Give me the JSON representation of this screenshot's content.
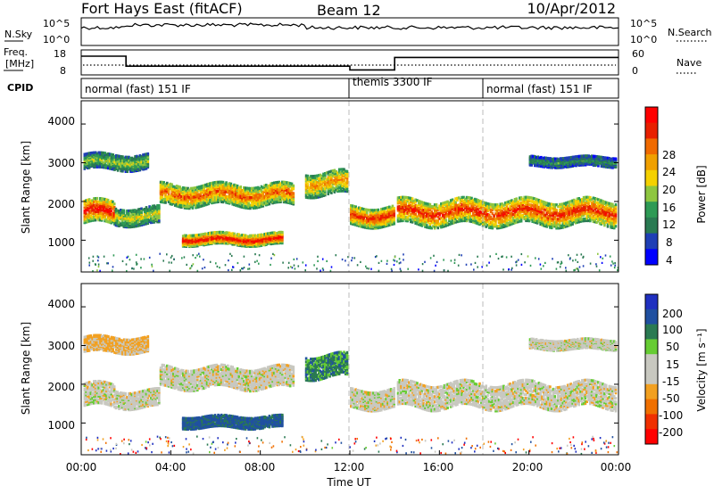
{
  "header": {
    "title": "Fort Hays East (fitACF)",
    "beam": "Beam 12",
    "date": "10/Apr/2012"
  },
  "summary": {
    "nsky_label": "N.Sky",
    "nsearch_label": "N.Search",
    "freq_label_line1": "Freq.",
    "freq_label_line2": "[MHz]",
    "nave_label": "Nave",
    "cpid_label": "CPID",
    "noise_ticks": [
      "10^5",
      "10^0"
    ],
    "freq_ticks": [
      "18",
      "8"
    ],
    "nave_ticks": [
      "60",
      "0"
    ],
    "cpid_segments": [
      {
        "label": "normal (fast) 151 IF",
        "start_hour": 0
      },
      {
        "label": "themis 3300 IF",
        "start_hour": 12
      },
      {
        "label": "normal (fast) 151 IF",
        "start_hour": 18
      }
    ],
    "freq_steps": [
      {
        "from": 0,
        "to": 2,
        "level": 0.75
      },
      {
        "from": 2,
        "to": 12,
        "level": 0.35
      },
      {
        "from": 12,
        "to": 14,
        "level": 0.2
      },
      {
        "from": 14,
        "to": 24,
        "level": 0.7
      }
    ]
  },
  "power_panel": {
    "ylabel": "Slant Range [km]",
    "yticks": [
      "4000",
      "3000",
      "2000",
      "1000"
    ],
    "colorbar_label": "Power [dB]",
    "colorbar_ticks": [
      "28",
      "24",
      "20",
      "16",
      "12",
      "8",
      "4"
    ],
    "colors": [
      "#0000ff",
      "#1f3fb5",
      "#2a7a52",
      "#2e9a55",
      "#8ec640",
      "#f5d100",
      "#f0a000",
      "#f06a00",
      "#e82000",
      "#ff0000"
    ]
  },
  "velocity_panel": {
    "ylabel": "Slant Range [km]",
    "yticks": [
      "4000",
      "3000",
      "2000",
      "1000"
    ],
    "colorbar_label": "Velocity [m s⁻¹]",
    "colorbar_ticks": [
      "200",
      "100",
      "50",
      "15",
      "-15",
      "-50",
      "-100",
      "-200"
    ],
    "colors": [
      "#2030c0",
      "#2050a0",
      "#2a7a52",
      "#66cc33",
      "#c8c8c0",
      "#c8c8c0",
      "#f2a020",
      "#f07000",
      "#f03000",
      "#ff0000"
    ]
  },
  "xaxis": {
    "label": "Time UT",
    "ticks": [
      "00:00",
      "04:00",
      "08:00",
      "12:00",
      "16:00",
      "20:00",
      "00:00"
    ]
  },
  "chart_data": {
    "type": "heatmap",
    "title": "Fort Hays East (fitACF)",
    "subtitle": "Beam 12",
    "date": "10/Apr/2012",
    "xlabel": "Time UT",
    "ylabel": "Slant Range [km]",
    "xlim_hours": [
      0,
      24
    ],
    "ylim_km": [
      180,
      4600
    ],
    "x_ticks_hours": [
      0,
      4,
      8,
      12,
      16,
      20,
      24
    ],
    "y_ticks_km": [
      1000,
      2000,
      3000,
      4000
    ],
    "mode_change_hours": [
      12,
      18
    ],
    "power_scale_db": [
      0,
      30
    ],
    "velocity_scale_ms": [
      -200,
      200
    ],
    "bands": [
      {
        "t_start": 0.1,
        "t_end": 1.5,
        "r_center": 1700,
        "r_width": 600,
        "power_db": 24,
        "velocity_ms": 0
      },
      {
        "t_start": 1.5,
        "t_end": 3.5,
        "r_center": 1600,
        "r_width": 450,
        "power_db": 14,
        "velocity_ms": 0
      },
      {
        "t_start": 3.5,
        "t_end": 9.5,
        "r_center": 2150,
        "r_width": 550,
        "power_db": 20,
        "velocity_ms": 0
      },
      {
        "t_start": 0.1,
        "t_end": 3.0,
        "r_center": 3000,
        "r_width": 400,
        "power_db": 12,
        "velocity_ms": -20
      },
      {
        "t_start": 4.5,
        "t_end": 9.0,
        "r_center": 1000,
        "r_width": 300,
        "power_db": 24,
        "velocity_ms": 60
      },
      {
        "t_start": 10.0,
        "t_end": 11.9,
        "r_center": 2450,
        "r_width": 600,
        "power_db": 18,
        "velocity_ms": 40
      },
      {
        "t_start": 12.0,
        "t_end": 14.0,
        "r_center": 1600,
        "r_width": 500,
        "power_db": 22,
        "velocity_ms": 0
      },
      {
        "t_start": 14.1,
        "t_end": 23.9,
        "r_center": 1700,
        "r_width": 650,
        "power_db": 22,
        "velocity_ms": 0
      },
      {
        "t_start": 20.0,
        "t_end": 23.9,
        "r_center": 3000,
        "r_width": 250,
        "power_db": 8,
        "velocity_ms": 0
      }
    ]
  }
}
